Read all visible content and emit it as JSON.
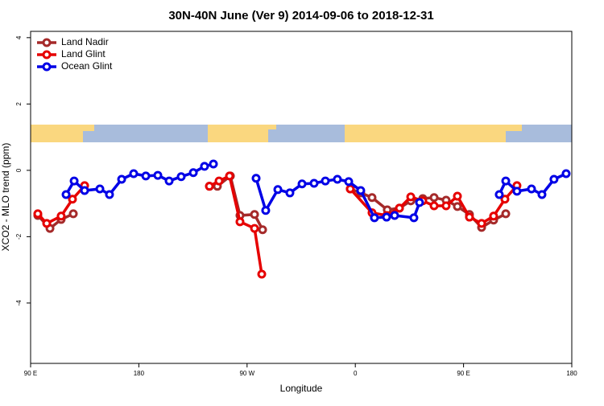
{
  "chart_data": {
    "type": "line",
    "title": "30N-40N June (Ver 9)   2014-09-06 to 2018-12-31",
    "xlabel": "Longitude",
    "ylabel": "XCO2 - MLO trend (ppm)",
    "xlim": [
      90,
      540
    ],
    "ylim": [
      -5.82,
      4.19
    ],
    "xticks": [
      {
        "value": 90,
        "label": "90 E"
      },
      180,
      {
        "value": 270,
        "label": "90 W"
      },
      {
        "value": 360,
        "label": "0"
      },
      {
        "value": 450,
        "label": "90 E"
      },
      {
        "value": 540,
        "label": "180"
      }
    ],
    "yticks": [
      -4,
      -2,
      0,
      2,
      4
    ],
    "legend": "top-left",
    "series": [
      {
        "name": "Land Nadir",
        "color": "#a52a2a",
        "x": [
          96.0,
          106.1,
          115.4,
          125.5,
          null,
          238.7,
          245.3,
          256.1,
          264.1,
          276.2,
          282.9,
          null,
          355.8,
          364.5,
          373.9,
          386.6,
          396.7,
          406.1,
          416.1,
          425.5,
          435.5,
          444.9,
          454.9,
          465.0,
          475.0,
          485.1
        ],
        "values": [
          -1.36,
          -1.75,
          -1.48,
          -1.31,
          null,
          -0.48,
          -0.48,
          -0.17,
          -1.36,
          -1.33,
          -1.79,
          null,
          -0.56,
          -0.68,
          -0.82,
          -1.19,
          -1.14,
          -0.92,
          -0.85,
          -0.82,
          -0.9,
          -1.09,
          -1.33,
          -1.72,
          -1.5,
          -1.31
        ]
      },
      {
        "name": "Land Glint",
        "color": "#e60000",
        "x": [
          96.0,
          103.4,
          115.4,
          124.8,
          134.9,
          null,
          238.7,
          246.7,
          255.4,
          264.1,
          276.2,
          282.2,
          null,
          355.8,
          373.9,
          386.0,
          396.7,
          406.1,
          416.1,
          425.5,
          435.5,
          444.9,
          454.9,
          465.0,
          475.0,
          484.4,
          494.4
        ],
        "values": [
          -1.31,
          -1.6,
          -1.38,
          -0.87,
          -0.46,
          null,
          -0.48,
          -0.32,
          -0.17,
          -1.55,
          -1.75,
          -3.13,
          null,
          -0.56,
          -1.28,
          -1.36,
          -1.14,
          -0.8,
          -0.92,
          -1.07,
          -1.07,
          -0.78,
          -1.41,
          -1.6,
          -1.38,
          -0.87,
          -0.46
        ]
      },
      {
        "name": "Ocean Glint",
        "color": "#0000e6",
        "x": [
          119.5,
          126.2,
          134.9,
          147.6,
          155.6,
          165.7,
          175.7,
          185.8,
          195.8,
          205.2,
          215.2,
          225.3,
          234.6,
          242.0,
          null,
          277.5,
          285.5,
          295.6,
          305.6,
          315.7,
          325.7,
          335.1,
          345.1,
          354.5,
          364.5,
          375.9,
          386.0,
          392.7,
          408.7,
          413.4,
          null,
          479.7,
          485.1,
          494.4,
          506.5,
          515.2,
          525.2,
          535.3
        ],
        "values": [
          -0.73,
          -0.32,
          -0.61,
          -0.56,
          -0.73,
          -0.27,
          -0.1,
          -0.17,
          -0.15,
          -0.32,
          -0.19,
          -0.07,
          0.12,
          0.19,
          null,
          -0.24,
          -1.21,
          -0.58,
          -0.68,
          -0.41,
          -0.39,
          -0.32,
          -0.27,
          -0.34,
          -0.61,
          -1.43,
          -1.41,
          -1.36,
          -1.43,
          -0.97,
          null,
          -0.73,
          -0.32,
          -0.63,
          -0.56,
          -0.73,
          -0.27,
          -0.1
        ]
      }
    ]
  }
}
